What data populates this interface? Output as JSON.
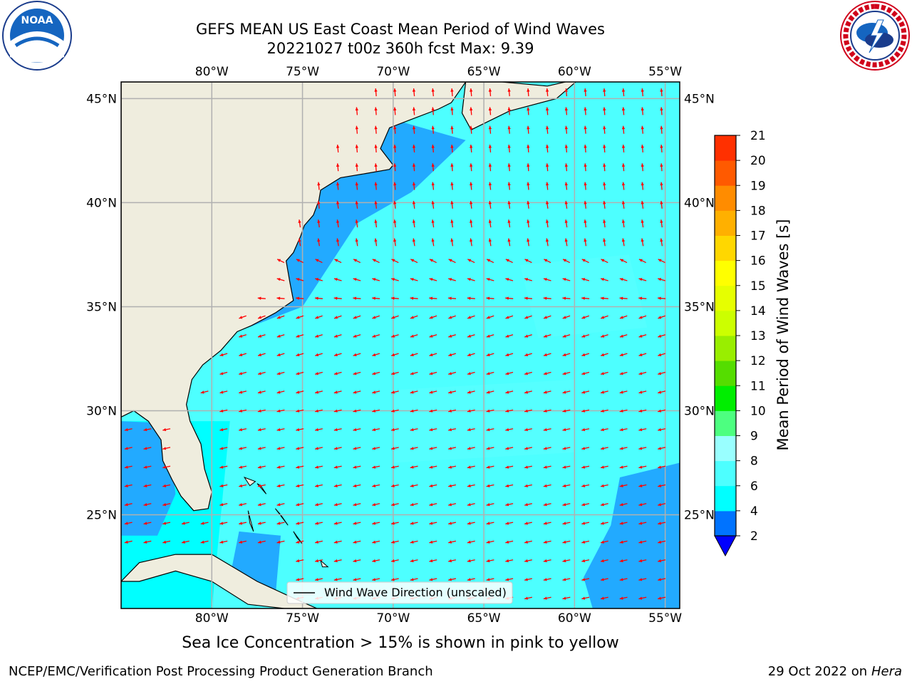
{
  "header": {
    "title_line1": "GEFS MEAN US East Coast Mean Period of Wind Waves",
    "title_line2": "20221027 t00z 360h fcst   Max: 9.39"
  },
  "logos": {
    "noaa_text": "NOAA",
    "noaa_ring_text": "NATIONAL OCEANIC AND ATMOSPHERIC ADMINISTRATION · U.S. DEPARTMENT OF COMMERCE",
    "nws_ring_text": "NATIONAL WEATHER SERVICE"
  },
  "map": {
    "lon_ticks": [
      "80°W",
      "75°W",
      "70°W",
      "65°W",
      "60°W",
      "55°W"
    ],
    "lat_ticks": [
      "45°N",
      "40°N",
      "35°N",
      "30°N",
      "25°N"
    ],
    "lon_values": [
      -80,
      -75,
      -70,
      -65,
      -60,
      -55
    ],
    "lat_values": [
      45,
      40,
      35,
      30,
      25
    ],
    "extent": {
      "lon_min": -85,
      "lon_max": -54.2,
      "lat_min": 20.5,
      "lat_max": 45.8
    },
    "legend_label": "Wind Wave Direction (unscaled)",
    "colors": {
      "land": "#efedde",
      "ocean_low": "#22aaff",
      "ocean_mid": "#00ffff",
      "ocean_high": "#55ffff",
      "arrow": "#ff0000",
      "grid": "#b0b0b0"
    }
  },
  "colorbar": {
    "label": "Mean Period of Wind Waves [s]",
    "ticks": [
      "2",
      "4",
      "6",
      "8",
      "9",
      "10",
      "11",
      "12",
      "13",
      "14",
      "15",
      "16",
      "17",
      "18",
      "19",
      "20",
      "21"
    ],
    "colors": [
      "#0073ff",
      "#00ffff",
      "#4dffff",
      "#99ffff",
      "#4dff80",
      "#00ee00",
      "#55dd00",
      "#99ee00",
      "#ccff00",
      "#e6ff00",
      "#ffff00",
      "#ffd700",
      "#ffb000",
      "#ff8c00",
      "#ff5a00",
      "#ff3000",
      "#ff0000"
    ],
    "extend_color": "#0000ff"
  },
  "footer": {
    "ice_note": "Sea Ice Concentration > 15% is shown in pink to yellow",
    "left": "NCEP/EMC/Verification Post Processing Product Generation Branch",
    "right_date": "29 Oct 2022 on ",
    "right_host": "Hera"
  }
}
